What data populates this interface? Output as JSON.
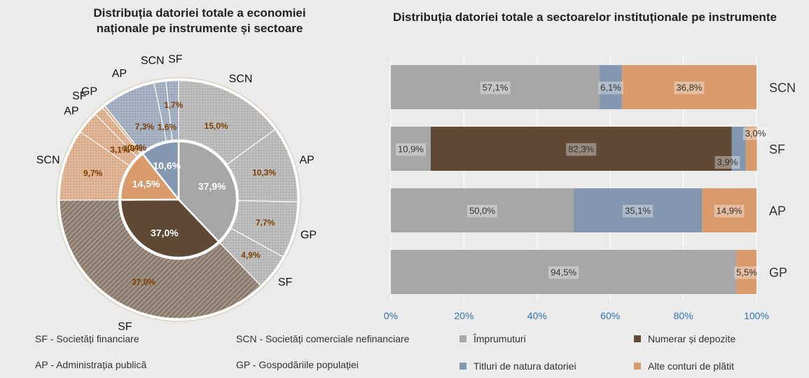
{
  "colors": {
    "imprumuturi": "#a6a6a6",
    "numerar": "#604a35",
    "titluri": "#8497b0",
    "alte": "#d99a6c",
    "axis_label": "#2e75b6",
    "outer_label": "#7f3f00"
  },
  "chart_data": [
    {
      "type": "pie",
      "title": "Distribuția datoriei totale a economiei naționale  pe instrumente și sectoare",
      "inner_ring": [
        {
          "instrument": "Împrumuturi",
          "value": 37.9,
          "label": "37,9%",
          "color": "#a6a6a6"
        },
        {
          "instrument": "Numerar și depozite",
          "value": 37.0,
          "label": "37,0%",
          "color": "#604a35"
        },
        {
          "instrument": "Alte conturi de plătit",
          "value": 14.5,
          "label": "14,5%",
          "color": "#d99a6c"
        },
        {
          "instrument": "Titluri de natura datoriei",
          "value": 10.6,
          "label": "10,6%",
          "color": "#8497b0"
        }
      ],
      "outer_ring": [
        {
          "sector": "SCN",
          "instrument": "Împrumuturi",
          "value": 15.0,
          "label": "15,0%",
          "color": "#a6a6a6"
        },
        {
          "sector": "AP",
          "instrument": "Împrumuturi",
          "value": 10.3,
          "label": "10,3%",
          "color": "#a6a6a6"
        },
        {
          "sector": "GP",
          "instrument": "Împrumuturi",
          "value": 7.7,
          "label": "7,7%",
          "color": "#a6a6a6"
        },
        {
          "sector": "SF",
          "instrument": "Împrumuturi",
          "value": 4.9,
          "label": "4,9%",
          "color": "#a6a6a6"
        },
        {
          "sector": "SF",
          "instrument": "Numerar și depozite",
          "value": 37.0,
          "label": "37,0%",
          "color": "#604a35"
        },
        {
          "sector": "SCN",
          "instrument": "Alte conturi de plătit",
          "value": 9.7,
          "label": "9,7%",
          "color": "#d99a6c"
        },
        {
          "sector": "AP",
          "instrument": "Alte conturi de plătit",
          "value": 3.1,
          "label": "3,1%",
          "color": "#d99a6c"
        },
        {
          "sector": "SF",
          "instrument": "Alte conturi de plătit",
          "value": 1.3,
          "label": "1,3%",
          "color": "#d99a6c"
        },
        {
          "sector": "GP",
          "instrument": "Alte conturi de plătit",
          "value": 0.4,
          "label": "0,4%",
          "color": "#d99a6c"
        },
        {
          "sector": "AP",
          "instrument": "Titluri de natura datoriei",
          "value": 7.3,
          "label": "7,3%",
          "color": "#8497b0"
        },
        {
          "sector": "SCN",
          "instrument": "Titluri de natura datoriei",
          "value": 1.6,
          "label": "1,6%",
          "color": "#8497b0"
        },
        {
          "sector": "SF",
          "instrument": "Titluri de natura datoriei",
          "value": 1.7,
          "label": "1,7%",
          "color": "#8497b0"
        }
      ]
    },
    {
      "type": "bar",
      "orientation": "horizontal",
      "stacked": "100%",
      "title": "Distribuția datoriei totale a sectoarelor instituționale pe instrumente",
      "categories": [
        "SCN",
        "SF",
        "AP",
        "GP"
      ],
      "series": [
        {
          "name": "Împrumuturi",
          "color": "#a6a6a6",
          "values": [
            57.1,
            10.9,
            50.0,
            94.5
          ],
          "labels": [
            "57,1%",
            "10,9%",
            "50,0%",
            "94,5%"
          ]
        },
        {
          "name": "Numerar și depozite",
          "color": "#604a35",
          "values": [
            0,
            82.3,
            0,
            0
          ],
          "labels": [
            "",
            "82,3%",
            "",
            ""
          ]
        },
        {
          "name": "Titluri de natura datoriei",
          "color": "#8497b0",
          "values": [
            6.1,
            3.9,
            35.1,
            0
          ],
          "labels": [
            "6,1%",
            "3,9%",
            "35,1%",
            ""
          ]
        },
        {
          "name": "Alte conturi de plătit",
          "color": "#d99a6c",
          "values": [
            36.8,
            3.0,
            14.9,
            5.5
          ],
          "labels": [
            "36,8%",
            "3,0%",
            "14,9%",
            "5,5%"
          ]
        }
      ],
      "xlim": [
        0,
        100
      ],
      "xticks": [
        "0%",
        "20%",
        "40%",
        "60%",
        "80%",
        "100%"
      ],
      "legend": [
        "Împrumuturi",
        "Numerar și depozite",
        "Titluri de natura datoriei",
        "Alte conturi de plătit"
      ]
    }
  ],
  "sector_legend": [
    {
      "text": "SF - Societăți financiare"
    },
    {
      "text": "SCN - Societăți comerciale nefinanciare"
    },
    {
      "text": "AP - Administrația publică"
    },
    {
      "text": "GP - Gospodăriile populației"
    }
  ]
}
